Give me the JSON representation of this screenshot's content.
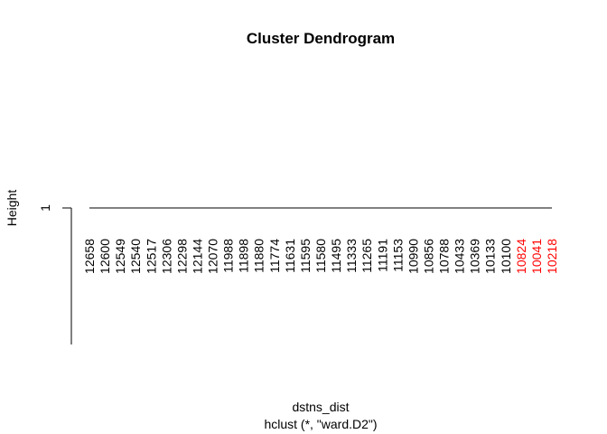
{
  "chart_data": {
    "type": "dendrogram",
    "title": "Cluster Dendrogram",
    "ylabel": "Height",
    "xlabel": "dstns_dist",
    "sub": "hclust (*, \"ward.D2\")",
    "yticks": [
      "1"
    ],
    "ylim": [
      0,
      1
    ],
    "merge_height": 1,
    "leaves": [
      {
        "label": "12658",
        "color": "#000000"
      },
      {
        "label": "12600",
        "color": "#000000"
      },
      {
        "label": "12549",
        "color": "#000000"
      },
      {
        "label": "12540",
        "color": "#000000"
      },
      {
        "label": "12517",
        "color": "#000000"
      },
      {
        "label": "12306",
        "color": "#000000"
      },
      {
        "label": "12298",
        "color": "#000000"
      },
      {
        "label": "12144",
        "color": "#000000"
      },
      {
        "label": "12070",
        "color": "#000000"
      },
      {
        "label": "11988",
        "color": "#000000"
      },
      {
        "label": "11898",
        "color": "#000000"
      },
      {
        "label": "11880",
        "color": "#000000"
      },
      {
        "label": "11774",
        "color": "#000000"
      },
      {
        "label": "11631",
        "color": "#000000"
      },
      {
        "label": "11595",
        "color": "#000000"
      },
      {
        "label": "11580",
        "color": "#000000"
      },
      {
        "label": "11495",
        "color": "#000000"
      },
      {
        "label": "11333",
        "color": "#000000"
      },
      {
        "label": "11265",
        "color": "#000000"
      },
      {
        "label": "11191",
        "color": "#000000"
      },
      {
        "label": "11153",
        "color": "#000000"
      },
      {
        "label": "10990",
        "color": "#000000"
      },
      {
        "label": "10856",
        "color": "#000000"
      },
      {
        "label": "10788",
        "color": "#000000"
      },
      {
        "label": "10433",
        "color": "#000000"
      },
      {
        "label": "10369",
        "color": "#000000"
      },
      {
        "label": "10133",
        "color": "#000000"
      },
      {
        "label": "10100",
        "color": "#000000"
      },
      {
        "label": "10824",
        "color": "#ff0000"
      },
      {
        "label": "10041",
        "color": "#ff0000"
      },
      {
        "label": "10218",
        "color": "#ff0000"
      }
    ]
  }
}
